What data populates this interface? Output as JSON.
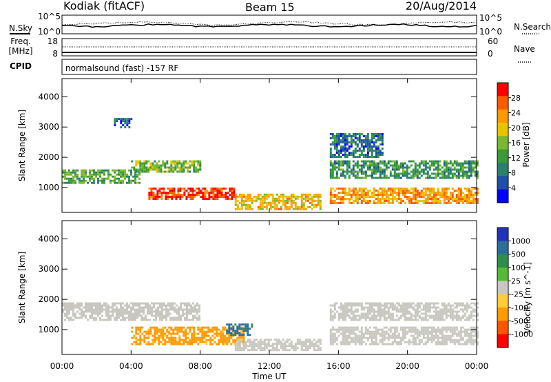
{
  "header": {
    "station": "Kodiak (fitACF)",
    "beam": "Beam 15",
    "date": "20/Aug/2014"
  },
  "noise_panel": {
    "left_label": "N.Sky",
    "right_label": "N.Search",
    "tick_top": "10^5",
    "tick_bottom": "10^0"
  },
  "freq_panel": {
    "left_label_1": "Freq.",
    "left_label_2": "[MHz]",
    "right_label": "Nave",
    "left_ticks": [
      "18",
      "8"
    ],
    "right_ticks": [
      "60",
      "0"
    ]
  },
  "cpid_panel": {
    "label": "CPID",
    "text": "normalsound (fast) -157 RF"
  },
  "colors": {
    "power_scale": [
      "#0000ff",
      "#1f4fa8",
      "#2a7f6f",
      "#3a9a3a",
      "#7ab82e",
      "#e8c400",
      "#ff9900",
      "#ff5a00",
      "#ff0000"
    ],
    "velocity_scale": [
      "#2233bb",
      "#2a6f9a",
      "#2f8f4a",
      "#55bb33",
      "#c8c8c0",
      "#ffcc33",
      "#ff9a00",
      "#ff5500",
      "#ff0000"
    ],
    "ground_scatter": "#c8c8c0"
  },
  "chart_data": [
    {
      "type": "heatmap",
      "parameter": "power",
      "x": [
        "00:00",
        "04:00",
        "08:00",
        "12:00",
        "16:00",
        "20:00",
        "00:00"
      ],
      "xlabel": "",
      "ylabel": "Slant Range [km]",
      "ylim": [
        180,
        4600
      ],
      "yticks": [
        "1000",
        "2000",
        "3000",
        "4000"
      ],
      "colorbar_label": "Power [dB]",
      "colorbar_ticks": [
        "4",
        "8",
        "12",
        "16",
        "20",
        "24",
        "28"
      ],
      "clim": [
        0,
        30
      ],
      "regions": [
        {
          "t": [
            0.0,
            4.5
          ],
          "range": [
            1150,
            1600
          ],
          "level": 12
        },
        {
          "t": [
            4.0,
            8.0
          ],
          "range": [
            1500,
            1900
          ],
          "level": 14
        },
        {
          "t": [
            5.0,
            10.0
          ],
          "range": [
            600,
            1000
          ],
          "level": 28
        },
        {
          "t": [
            10.0,
            15.0
          ],
          "range": [
            300,
            800
          ],
          "level": 20
        },
        {
          "t": [
            15.5,
            24.0
          ],
          "range": [
            500,
            1000
          ],
          "level": 22
        },
        {
          "t": [
            15.5,
            24.0
          ],
          "range": [
            1300,
            1900
          ],
          "level": 10
        },
        {
          "t": [
            15.5,
            18.5
          ],
          "range": [
            2000,
            2800
          ],
          "level": 6
        },
        {
          "t": [
            3.0,
            4.0
          ],
          "range": [
            3000,
            3300
          ],
          "level": 6
        }
      ]
    },
    {
      "type": "heatmap",
      "parameter": "velocity",
      "x": [
        "00:00",
        "04:00",
        "08:00",
        "12:00",
        "16:00",
        "20:00",
        "00:00"
      ],
      "xlabel": "Time UT",
      "ylabel": "Slant Range [km]",
      "ylim": [
        180,
        4600
      ],
      "yticks": [
        "1000",
        "2000",
        "3000",
        "4000"
      ],
      "colorbar_label": "Velocity [m s^-1]",
      "colorbar_ticks": [
        "1000",
        "500",
        "100",
        "25",
        "-25",
        "-100",
        "-500",
        "-1000"
      ],
      "clim": [
        -1000,
        1000
      ],
      "regions": [
        {
          "t": [
            0.0,
            8.0
          ],
          "range": [
            1300,
            1900
          ],
          "value": 0,
          "ground": true
        },
        {
          "t": [
            4.0,
            10.5
          ],
          "range": [
            500,
            1100
          ],
          "value": -150
        },
        {
          "t": [
            10.0,
            15.0
          ],
          "range": [
            300,
            700
          ],
          "value": 0,
          "ground": true
        },
        {
          "t": [
            15.5,
            24.0
          ],
          "range": [
            500,
            1100
          ],
          "value": 0,
          "ground": true
        },
        {
          "t": [
            15.5,
            24.0
          ],
          "range": [
            1300,
            1900
          ],
          "value": 0,
          "ground": true
        },
        {
          "t": [
            9.5,
            11.0
          ],
          "range": [
            800,
            1200
          ],
          "value": 150
        }
      ]
    }
  ]
}
